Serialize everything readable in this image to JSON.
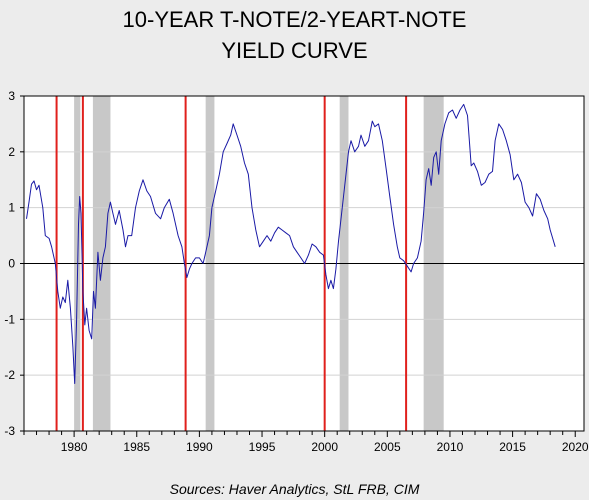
{
  "colors": {
    "background": "#ececec",
    "plot_background": "#ffffff",
    "line": "#1a1aa6",
    "recession_band": "#c8c8c8",
    "red_marker": "#e0201c",
    "gridline": "#d2d2d2"
  },
  "chart_data": {
    "type": "line",
    "title_line1": "10-YEAR T-NOTE/2-YEART-NOTE",
    "title_line2": "YIELD CURVE",
    "source": "Sources:  Haver Analytics, StL FRB, CIM",
    "xlabel": "",
    "ylabel": "",
    "xlim": [
      1976,
      2020.7
    ],
    "ylim": [
      -3,
      3
    ],
    "x_ticks": [
      1980,
      1985,
      1990,
      1995,
      2000,
      2005,
      2010,
      2015,
      2020
    ],
    "y_ticks": [
      -3,
      -2,
      -1,
      0,
      1,
      2,
      3
    ],
    "grid": true,
    "recession_bands": [
      [
        1980.0,
        1980.5
      ],
      [
        1981.5,
        1982.9
      ],
      [
        1990.5,
        1991.2
      ],
      [
        2001.2,
        2001.9
      ],
      [
        2007.9,
        2009.5
      ]
    ],
    "red_lines": [
      1978.6,
      1980.7,
      1988.9,
      2000.0,
      2006.5
    ],
    "series": [
      {
        "values": [
          [
            1976.2,
            0.8
          ],
          [
            1976.4,
            1.1
          ],
          [
            1976.6,
            1.42
          ],
          [
            1976.8,
            1.48
          ],
          [
            1977.0,
            1.32
          ],
          [
            1977.2,
            1.4
          ],
          [
            1977.5,
            1.0
          ],
          [
            1977.7,
            0.5
          ],
          [
            1978.0,
            0.45
          ],
          [
            1978.2,
            0.3
          ],
          [
            1978.5,
            0.0
          ],
          [
            1978.7,
            -0.5
          ],
          [
            1978.9,
            -0.8
          ],
          [
            1979.1,
            -0.6
          ],
          [
            1979.3,
            -0.7
          ],
          [
            1979.5,
            -0.3
          ],
          [
            1979.7,
            -0.8
          ],
          [
            1979.9,
            -1.5
          ],
          [
            1980.05,
            -2.15
          ],
          [
            1980.2,
            -1.0
          ],
          [
            1980.35,
            0.7
          ],
          [
            1980.45,
            1.2
          ],
          [
            1980.55,
            0.9
          ],
          [
            1980.7,
            -0.5
          ],
          [
            1980.85,
            -1.1
          ],
          [
            1981.0,
            -0.8
          ],
          [
            1981.2,
            -1.2
          ],
          [
            1981.4,
            -1.35
          ],
          [
            1981.55,
            -0.5
          ],
          [
            1981.7,
            -0.8
          ],
          [
            1981.9,
            0.2
          ],
          [
            1982.1,
            -0.3
          ],
          [
            1982.3,
            0.1
          ],
          [
            1982.5,
            0.3
          ],
          [
            1982.7,
            0.9
          ],
          [
            1982.9,
            1.1
          ],
          [
            1983.1,
            0.9
          ],
          [
            1983.3,
            0.7
          ],
          [
            1983.6,
            0.95
          ],
          [
            1983.9,
            0.6
          ],
          [
            1984.1,
            0.3
          ],
          [
            1984.3,
            0.5
          ],
          [
            1984.6,
            0.5
          ],
          [
            1984.9,
            1.0
          ],
          [
            1985.2,
            1.3
          ],
          [
            1985.5,
            1.5
          ],
          [
            1985.8,
            1.3
          ],
          [
            1986.1,
            1.2
          ],
          [
            1986.5,
            0.9
          ],
          [
            1986.9,
            0.8
          ],
          [
            1987.2,
            1.0
          ],
          [
            1987.6,
            1.15
          ],
          [
            1987.9,
            0.9
          ],
          [
            1988.3,
            0.5
          ],
          [
            1988.6,
            0.3
          ],
          [
            1988.8,
            0.0
          ],
          [
            1989.0,
            -0.25
          ],
          [
            1989.2,
            -0.1
          ],
          [
            1989.4,
            0.0
          ],
          [
            1989.7,
            0.1
          ],
          [
            1990.0,
            0.1
          ],
          [
            1990.3,
            0.0
          ],
          [
            1990.5,
            0.2
          ],
          [
            1990.8,
            0.5
          ],
          [
            1991.0,
            1.0
          ],
          [
            1991.3,
            1.3
          ],
          [
            1991.6,
            1.6
          ],
          [
            1991.9,
            2.0
          ],
          [
            1992.2,
            2.15
          ],
          [
            1992.5,
            2.3
          ],
          [
            1992.7,
            2.5
          ],
          [
            1993.0,
            2.3
          ],
          [
            1993.3,
            2.1
          ],
          [
            1993.6,
            1.8
          ],
          [
            1993.9,
            1.6
          ],
          [
            1994.2,
            1.0
          ],
          [
            1994.5,
            0.6
          ],
          [
            1994.8,
            0.3
          ],
          [
            1995.1,
            0.4
          ],
          [
            1995.4,
            0.5
          ],
          [
            1995.7,
            0.4
          ],
          [
            1996.0,
            0.55
          ],
          [
            1996.3,
            0.65
          ],
          [
            1996.6,
            0.6
          ],
          [
            1996.9,
            0.55
          ],
          [
            1997.2,
            0.5
          ],
          [
            1997.5,
            0.3
          ],
          [
            1997.8,
            0.2
          ],
          [
            1998.1,
            0.1
          ],
          [
            1998.4,
            0.0
          ],
          [
            1998.7,
            0.15
          ],
          [
            1999.0,
            0.35
          ],
          [
            1999.3,
            0.3
          ],
          [
            1999.6,
            0.2
          ],
          [
            1999.9,
            0.15
          ],
          [
            2000.1,
            -0.2
          ],
          [
            2000.3,
            -0.45
          ],
          [
            2000.5,
            -0.3
          ],
          [
            2000.7,
            -0.45
          ],
          [
            2000.9,
            -0.1
          ],
          [
            2001.1,
            0.4
          ],
          [
            2001.3,
            0.8
          ],
          [
            2001.5,
            1.2
          ],
          [
            2001.7,
            1.6
          ],
          [
            2001.9,
            2.0
          ],
          [
            2002.1,
            2.2
          ],
          [
            2002.4,
            2.0
          ],
          [
            2002.7,
            2.1
          ],
          [
            2002.9,
            2.3
          ],
          [
            2003.2,
            2.1
          ],
          [
            2003.5,
            2.2
          ],
          [
            2003.8,
            2.55
          ],
          [
            2004.0,
            2.45
          ],
          [
            2004.3,
            2.5
          ],
          [
            2004.6,
            2.2
          ],
          [
            2004.9,
            1.7
          ],
          [
            2005.2,
            1.2
          ],
          [
            2005.5,
            0.7
          ],
          [
            2005.8,
            0.3
          ],
          [
            2006.0,
            0.1
          ],
          [
            2006.3,
            0.05
          ],
          [
            2006.6,
            -0.05
          ],
          [
            2006.9,
            -0.15
          ],
          [
            2007.1,
            0.0
          ],
          [
            2007.4,
            0.1
          ],
          [
            2007.7,
            0.4
          ],
          [
            2007.9,
            0.9
          ],
          [
            2008.1,
            1.5
          ],
          [
            2008.3,
            1.7
          ],
          [
            2008.5,
            1.4
          ],
          [
            2008.7,
            1.9
          ],
          [
            2008.9,
            2.0
          ],
          [
            2009.1,
            1.6
          ],
          [
            2009.3,
            2.2
          ],
          [
            2009.6,
            2.5
          ],
          [
            2009.9,
            2.7
          ],
          [
            2010.2,
            2.75
          ],
          [
            2010.5,
            2.6
          ],
          [
            2010.8,
            2.75
          ],
          [
            2011.1,
            2.85
          ],
          [
            2011.4,
            2.65
          ],
          [
            2011.7,
            1.75
          ],
          [
            2011.9,
            1.8
          ],
          [
            2012.2,
            1.65
          ],
          [
            2012.5,
            1.4
          ],
          [
            2012.8,
            1.45
          ],
          [
            2013.1,
            1.6
          ],
          [
            2013.4,
            1.65
          ],
          [
            2013.6,
            2.2
          ],
          [
            2013.9,
            2.5
          ],
          [
            2014.2,
            2.4
          ],
          [
            2014.5,
            2.2
          ],
          [
            2014.8,
            1.95
          ],
          [
            2015.1,
            1.5
          ],
          [
            2015.4,
            1.6
          ],
          [
            2015.7,
            1.45
          ],
          [
            2016.0,
            1.1
          ],
          [
            2016.3,
            1.0
          ],
          [
            2016.6,
            0.85
          ],
          [
            2016.9,
            1.25
          ],
          [
            2017.2,
            1.15
          ],
          [
            2017.5,
            0.95
          ],
          [
            2017.8,
            0.8
          ],
          [
            2018.0,
            0.6
          ],
          [
            2018.2,
            0.45
          ],
          [
            2018.4,
            0.3
          ]
        ]
      }
    ]
  }
}
